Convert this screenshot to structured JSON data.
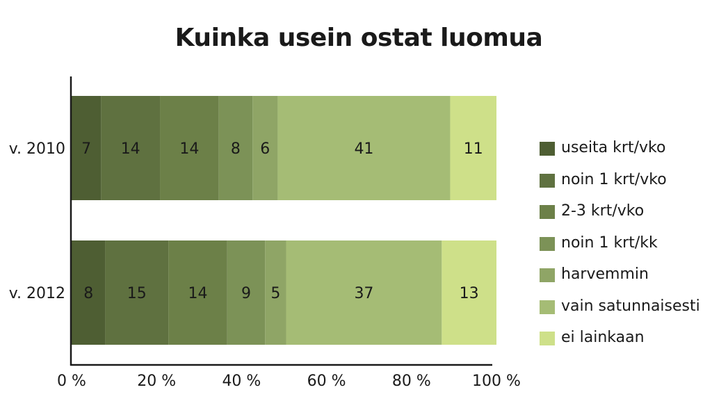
{
  "chart_data": {
    "type": "bar",
    "orientation": "horizontal",
    "stacked": true,
    "title": "Kuinka usein ostat luomua",
    "categories": [
      "v. 2010",
      "v. 2012"
    ],
    "series": [
      {
        "name": "useita krt/vko",
        "values": [
          7,
          8
        ],
        "color": "#4e5e33"
      },
      {
        "name": "noin 1 krt/vko",
        "values": [
          14,
          15
        ],
        "color": "#5f7140"
      },
      {
        "name": "2-3 krt/vko",
        "values": [
          14,
          14
        ],
        "color": "#6c8048"
      },
      {
        "name": "noin  1 krt/kk",
        "values": [
          8,
          9
        ],
        "color": "#7c9257"
      },
      {
        "name": "harvemmin",
        "values": [
          6,
          5
        ],
        "color": "#8fa566"
      },
      {
        "name": "vain satunnaisesti",
        "values": [
          41,
          37
        ],
        "color": "#a5bc75"
      },
      {
        "name": "ei lainkaan",
        "values": [
          11,
          13
        ],
        "color": "#cee089"
      }
    ],
    "x_ticks": [
      "0 %",
      "20 %",
      "40 %",
      "60 %",
      "80 %",
      "100 %"
    ],
    "xlim": [
      0,
      100
    ],
    "legend_position": "right",
    "grid": false
  }
}
